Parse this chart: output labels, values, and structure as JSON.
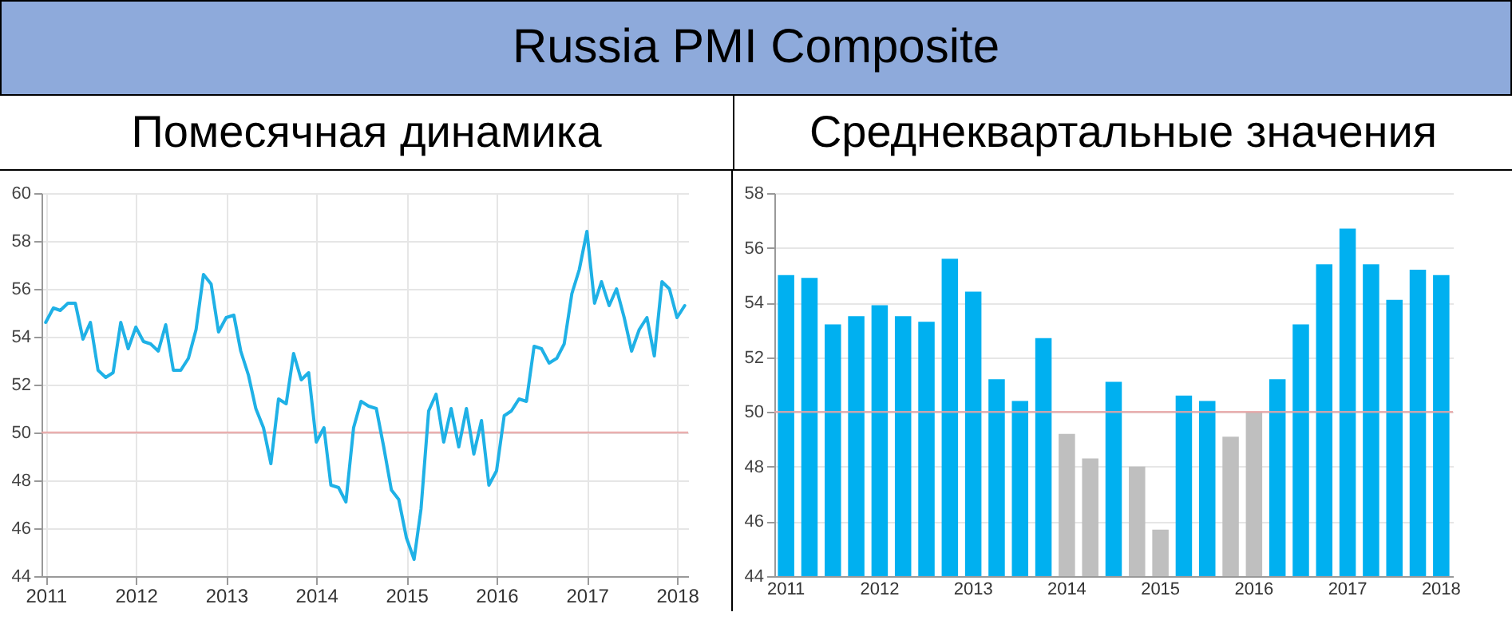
{
  "chart_data": [
    {
      "type": "line",
      "title": "Russia PMI Composite",
      "subtitle": "Помесячная динамика",
      "x": [
        "2011-01",
        "2011-02",
        "2011-03",
        "2011-04",
        "2011-05",
        "2011-06",
        "2011-07",
        "2011-08",
        "2011-09",
        "2011-10",
        "2011-11",
        "2011-12",
        "2012-01",
        "2012-02",
        "2012-03",
        "2012-04",
        "2012-05",
        "2012-06",
        "2012-07",
        "2012-08",
        "2012-09",
        "2012-10",
        "2012-11",
        "2012-12",
        "2013-01",
        "2013-02",
        "2013-03",
        "2013-04",
        "2013-05",
        "2013-06",
        "2013-07",
        "2013-08",
        "2013-09",
        "2013-10",
        "2013-11",
        "2013-12",
        "2014-01",
        "2014-02",
        "2014-03",
        "2014-04",
        "2014-05",
        "2014-06",
        "2014-07",
        "2014-08",
        "2014-09",
        "2014-10",
        "2014-11",
        "2014-12",
        "2015-01",
        "2015-02",
        "2015-03",
        "2015-04",
        "2015-05",
        "2015-06",
        "2015-07",
        "2015-08",
        "2015-09",
        "2015-10",
        "2015-11",
        "2015-12",
        "2016-01",
        "2016-02",
        "2016-03",
        "2016-04",
        "2016-05",
        "2016-06",
        "2016-07",
        "2016-08",
        "2016-09",
        "2016-10",
        "2016-11",
        "2016-12",
        "2017-01",
        "2017-02",
        "2017-03",
        "2017-04",
        "2017-05",
        "2017-06",
        "2017-07",
        "2017-08",
        "2017-09",
        "2017-10",
        "2017-11",
        "2017-12",
        "2018-01",
        "2018-02"
      ],
      "series": [
        {
          "color": "#1fb1e6",
          "values": [
            54.6,
            55.2,
            55.1,
            55.4,
            55.4,
            53.9,
            54.6,
            52.6,
            52.3,
            52.5,
            54.6,
            53.5,
            54.4,
            53.8,
            53.7,
            53.4,
            54.5,
            52.6,
            52.6,
            53.1,
            54.3,
            56.6,
            56.2,
            54.2,
            54.8,
            54.9,
            53.4,
            52.4,
            51.0,
            50.2,
            48.7,
            51.4,
            51.2,
            53.3,
            52.2,
            52.5,
            49.6,
            50.2,
            47.8,
            47.7,
            47.1,
            50.2,
            51.3,
            51.1,
            51.0,
            49.4,
            47.6,
            47.2,
            45.6,
            44.7,
            46.8,
            50.9,
            51.6,
            49.6,
            51.0,
            49.4,
            51.0,
            49.1,
            50.5,
            47.8,
            48.4,
            50.7,
            50.9,
            51.4,
            51.3,
            53.6,
            53.5,
            52.9,
            53.1,
            53.7,
            55.8,
            56.8,
            58.4,
            55.4,
            56.3,
            55.3,
            56.0,
            54.8,
            53.4,
            54.3,
            54.8,
            53.2,
            56.3,
            56.0,
            54.8,
            55.3
          ]
        }
      ],
      "xlim": [
        "2010-12-15",
        "2018-02-15"
      ],
      "xticks": [
        {
          "value": "2011-01",
          "label": "2011"
        },
        {
          "value": "2012-01",
          "label": "2012"
        },
        {
          "value": "2013-01",
          "label": "2013"
        },
        {
          "value": "2014-01",
          "label": "2014"
        },
        {
          "value": "2015-01",
          "label": "2015"
        },
        {
          "value": "2016-01",
          "label": "2016"
        },
        {
          "value": "2017-01",
          "label": "2017"
        },
        {
          "value": "2018-01",
          "label": "2018"
        }
      ],
      "ylim": [
        44,
        60
      ],
      "yticks": [
        44,
        46,
        48,
        50,
        52,
        54,
        56,
        58,
        60
      ],
      "grid": true,
      "marker": "none",
      "line_style": "solid",
      "ref_lines": [
        {
          "axis": "y",
          "value": 50,
          "color": "#e8a3a3"
        }
      ]
    },
    {
      "type": "bar",
      "subtitle": "Среднеквартальные значения",
      "categories": [
        "2011",
        null,
        null,
        null,
        "2012",
        null,
        null,
        null,
        "2013",
        null,
        null,
        null,
        "2014",
        null,
        null,
        null,
        "2015",
        null,
        null,
        null,
        "2016",
        null,
        null,
        null,
        "2017",
        null,
        null,
        null,
        "2018"
      ],
      "values": [
        55.0,
        54.9,
        53.2,
        53.5,
        53.9,
        53.5,
        53.3,
        55.6,
        54.4,
        51.2,
        50.4,
        52.7,
        49.2,
        48.3,
        51.1,
        48.0,
        45.7,
        50.6,
        50.4,
        49.1,
        50.0,
        51.2,
        53.2,
        55.4,
        56.7,
        55.4,
        54.1,
        55.2,
        55.0
      ],
      "colors": [
        "#00b0f0",
        "#00b0f0",
        "#00b0f0",
        "#00b0f0",
        "#00b0f0",
        "#00b0f0",
        "#00b0f0",
        "#00b0f0",
        "#00b0f0",
        "#00b0f0",
        "#00b0f0",
        "#00b0f0",
        "#bfbfbf",
        "#bfbfbf",
        "#00b0f0",
        "#bfbfbf",
        "#bfbfbf",
        "#00b0f0",
        "#00b0f0",
        "#bfbfbf",
        "#bfbfbf",
        "#00b0f0",
        "#00b0f0",
        "#00b0f0",
        "#00b0f0",
        "#00b0f0",
        "#00b0f0",
        "#00b0f0",
        "#00b0f0"
      ],
      "ylim": [
        44,
        58
      ],
      "yticks": [
        44,
        46,
        48,
        50,
        52,
        54,
        56,
        58
      ],
      "grid": "y",
      "ref_lines": [
        {
          "axis": "y",
          "value": 50,
          "color": "#e8a3a3"
        }
      ]
    }
  ]
}
